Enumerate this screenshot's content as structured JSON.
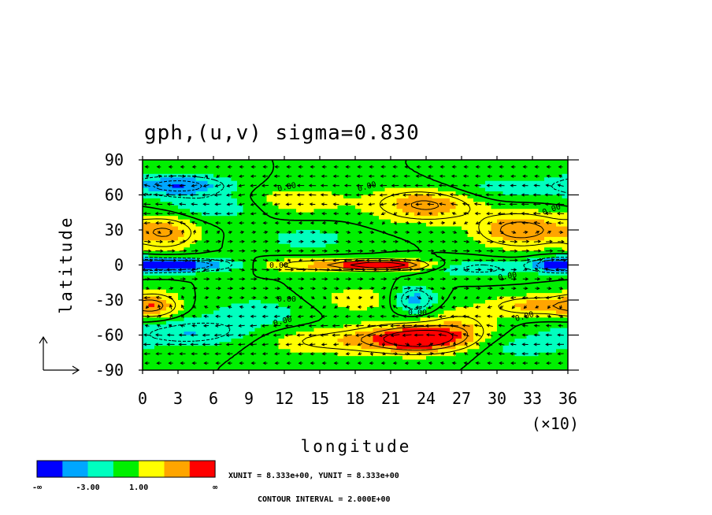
{
  "chart_data": {
    "type": "heatmap",
    "title": "gph,(u,v) sigma=0.830",
    "xlabel": "longitude",
    "ylabel": "latitude",
    "x_multiplier_label": "(×10)",
    "xlim": [
      0,
      360
    ],
    "ylim": [
      -90,
      90
    ],
    "x_tick_labels": [
      "0",
      "3",
      "6",
      "9",
      "12",
      "15",
      "18",
      "21",
      "24",
      "27",
      "30",
      "33",
      "36"
    ],
    "y_tick_labels": [
      "90",
      "60",
      "30",
      "0",
      "-30",
      "-60",
      "-90"
    ],
    "grid": false,
    "colorbar": {
      "colors": [
        "#0000ff",
        "#00a6ff",
        "#00ffbf",
        "#00f000",
        "#ffff00",
        "#ffa500",
        "#ff0000"
      ],
      "labels": [
        "-∞",
        "-3.00",
        "1.00",
        "∞"
      ]
    },
    "unit_text": "XUNIT = 8.333e+00, YUNIT = 8.333e+00",
    "contour_interval_text": "CONTOUR INTERVAL = 2.000E+00",
    "contour_labels": [
      "0.00",
      "0.00",
      "0.00",
      "0.00",
      "0.00",
      "0.00",
      "0.00",
      "0.00",
      "0.00"
    ],
    "anomalies": [
      {
        "lon": 30,
        "lat": 68,
        "value": -5,
        "sx": 28,
        "sy": 6
      },
      {
        "lon": 60,
        "lat": 50,
        "value": -2,
        "sx": 30,
        "sy": 8
      },
      {
        "lon": 20,
        "lat": 28,
        "value": 4,
        "sx": 18,
        "sy": 10
      },
      {
        "lon": 140,
        "lat": 22,
        "value": -1.5,
        "sx": 30,
        "sy": 8
      },
      {
        "lon": 130,
        "lat": 55,
        "value": 2,
        "sx": 30,
        "sy": 8
      },
      {
        "lon": 240,
        "lat": 52,
        "value": 4.5,
        "sx": 30,
        "sy": 10
      },
      {
        "lon": 320,
        "lat": 30,
        "value": 5,
        "sx": 25,
        "sy": 10
      },
      {
        "lon": 290,
        "lat": 65,
        "value": -1.5,
        "sx": 40,
        "sy": 8
      },
      {
        "lon": 20,
        "lat": 0,
        "value": -6,
        "sx": 25,
        "sy": 4
      },
      {
        "lon": 60,
        "lat": 0,
        "value": -2.5,
        "sx": 25,
        "sy": 4
      },
      {
        "lon": 150,
        "lat": 0,
        "value": 3,
        "sx": 40,
        "sy": 4
      },
      {
        "lon": 205,
        "lat": 0,
        "value": 7,
        "sx": 25,
        "sy": 3
      },
      {
        "lon": 285,
        "lat": -3,
        "value": -2.5,
        "sx": 25,
        "sy": 5
      },
      {
        "lon": 350,
        "lat": 0,
        "value": -5,
        "sx": 15,
        "sy": 4
      },
      {
        "lon": 10,
        "lat": -35,
        "value": 4,
        "sx": 15,
        "sy": 8
      },
      {
        "lon": 40,
        "lat": -58,
        "value": -3,
        "sx": 35,
        "sy": 8
      },
      {
        "lon": 100,
        "lat": -40,
        "value": -1.5,
        "sx": 35,
        "sy": 10
      },
      {
        "lon": 180,
        "lat": -30,
        "value": 1.5,
        "sx": 30,
        "sy": 10
      },
      {
        "lon": 230,
        "lat": -30,
        "value": -4,
        "sx": 12,
        "sy": 8
      },
      {
        "lon": 235,
        "lat": -63,
        "value": 8,
        "sx": 30,
        "sy": 8
      },
      {
        "lon": 160,
        "lat": -65,
        "value": 2.5,
        "sx": 40,
        "sy": 8
      },
      {
        "lon": 330,
        "lat": -35,
        "value": 3.5,
        "sx": 25,
        "sy": 6
      },
      {
        "lon": 320,
        "lat": -70,
        "value": -1.5,
        "sx": 30,
        "sy": 8
      },
      {
        "lon": 270,
        "lat": -50,
        "value": 2,
        "sx": 20,
        "sy": 10
      }
    ]
  }
}
